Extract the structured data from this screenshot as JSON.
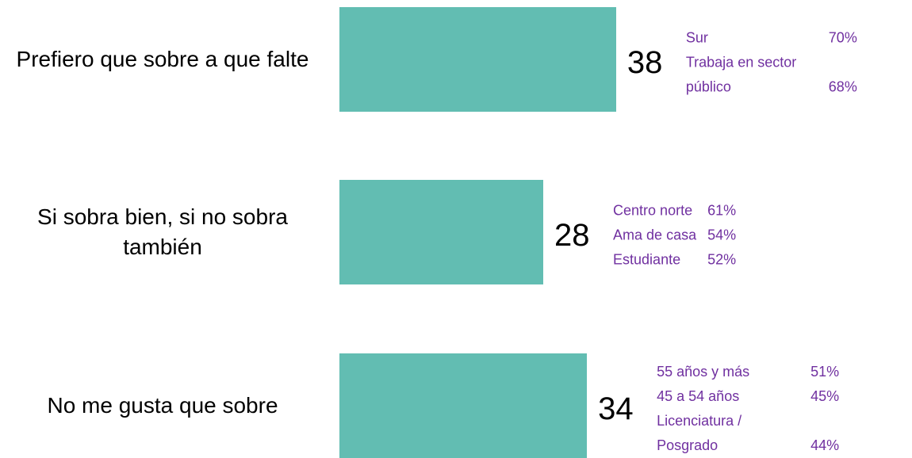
{
  "chart_data": {
    "type": "bar",
    "orientation": "horizontal",
    "color": "#62bdb2",
    "categories": [
      "Prefiero que sobre a que falte",
      "Si sobra bien, si no sobra también",
      "No me gusta que sobre"
    ],
    "values": [
      38,
      28,
      34
    ],
    "annotation_color": "#7030a0",
    "annotations": [
      [
        {
          "text": "Sur",
          "value": 70,
          "value_label": "70%"
        },
        {
          "text": "Trabaja en sector público",
          "value": 68,
          "value_label": "68%"
        }
      ],
      [
        {
          "text": "Centro norte",
          "value": 61,
          "value_label": "61%"
        },
        {
          "text": "Ama de casa",
          "value": 54,
          "value_label": "54%"
        },
        {
          "text": "Estudiante",
          "value": 52,
          "value_label": "52%"
        }
      ],
      [
        {
          "text": "55 años y más",
          "value": 51,
          "value_label": "51%"
        },
        {
          "text": "45 a 54 años",
          "value": 45,
          "value_label": "45%"
        },
        {
          "text": "Licenciatura / Posgrado",
          "value": 44,
          "value_label": "44%"
        }
      ]
    ]
  }
}
